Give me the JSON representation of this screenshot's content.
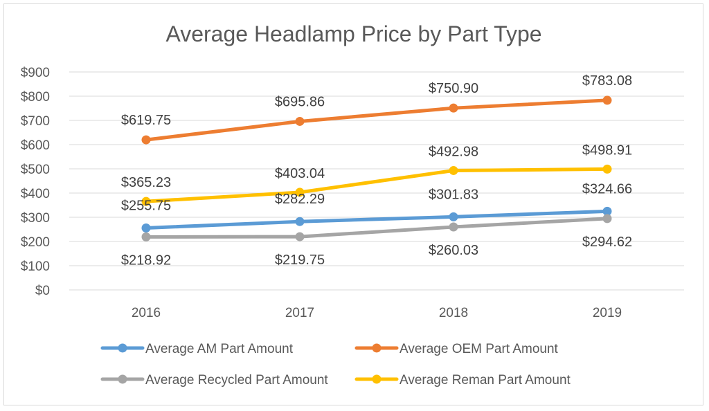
{
  "chart_data": {
    "type": "line",
    "title": "Average Headlamp Price by Part Type",
    "xlabel": "",
    "ylabel": "",
    "categories": [
      "2016",
      "2017",
      "2018",
      "2019"
    ],
    "ylim": [
      0,
      900
    ],
    "y_ticks": [
      0,
      100,
      200,
      300,
      400,
      500,
      600,
      700,
      800,
      900
    ],
    "y_tick_labels": [
      "$0",
      "$100",
      "$200",
      "$300",
      "$400",
      "$500",
      "$600",
      "$700",
      "$800",
      "$900"
    ],
    "grid": true,
    "legend_position": "bottom",
    "series": [
      {
        "name": "Average AM Part Amount",
        "color": "#5B9BD5",
        "values": [
          255.75,
          282.29,
          301.83,
          324.66
        ],
        "labels": [
          "$255.75",
          "$282.29",
          "$301.83",
          "$324.66"
        ]
      },
      {
        "name": "Average OEM Part Amount",
        "color": "#ED7D31",
        "values": [
          619.75,
          695.86,
          750.9,
          783.08
        ],
        "labels": [
          "$619.75",
          "$695.86",
          "$750.90",
          "$783.08"
        ]
      },
      {
        "name": "Average Recycled Part Amount",
        "color": "#A5A5A5",
        "values": [
          218.92,
          219.75,
          260.03,
          294.62
        ],
        "labels": [
          "$218.92",
          "$219.75",
          "$260.03",
          "$294.62"
        ]
      },
      {
        "name": "Average Reman Part Amount",
        "color": "#FFC000",
        "values": [
          365.23,
          403.04,
          492.98,
          498.91
        ],
        "labels": [
          "$365.23",
          "$403.04",
          "$492.98",
          "$498.91"
        ]
      }
    ]
  }
}
